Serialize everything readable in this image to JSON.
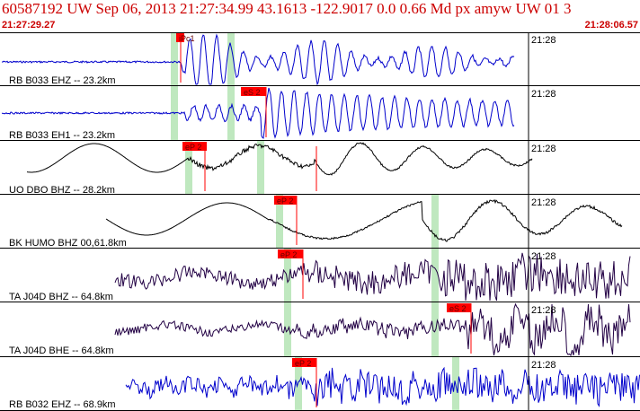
{
  "header": {
    "title": "60587192 UW Sep 06, 2013 21:27:34.99   43.1613 -122.9017  0.0 0.66 Md px amyw UW 01   3",
    "time_start": "21:27:29.27",
    "time_end": "21:28:06.57"
  },
  "colors": {
    "header_text": "#cc0000",
    "pick_flag": "#ff0000",
    "phase_window": "#bfe8bf",
    "trace_blue": "#0000cc",
    "trace_black": "#000000",
    "trace_dark": "#220044",
    "divider": "#000000"
  },
  "traces": [
    {
      "label": "RB B033 EHZ -- 23.2km",
      "time_tick": "21:28",
      "pick": "iPc1",
      "color": "blue"
    },
    {
      "label": "RB B033 EH1 -- 23.2km",
      "time_tick": "21:28",
      "pick": "eS 2",
      "color": "blue"
    },
    {
      "label": "UO DBO BHZ -- 28.2km",
      "time_tick": "21:28",
      "pick": "eP 2",
      "color": "black"
    },
    {
      "label": "BK HUMO BHZ 00,61.8km",
      "time_tick": "21:28",
      "pick": "eP 2",
      "color": "black"
    },
    {
      "label": "TA J04D BHZ -- 64.8km",
      "time_tick": "21:28",
      "pick": "eP 2",
      "color": "dark"
    },
    {
      "label": "TA J04D BHE -- 64.8km",
      "time_tick": "21:28",
      "pick": "eS 2",
      "color": "dark"
    },
    {
      "label": "RB B032 EHZ -- 68.9km",
      "time_tick": "21:28",
      "pick": "eP 2",
      "color": "blue"
    }
  ]
}
